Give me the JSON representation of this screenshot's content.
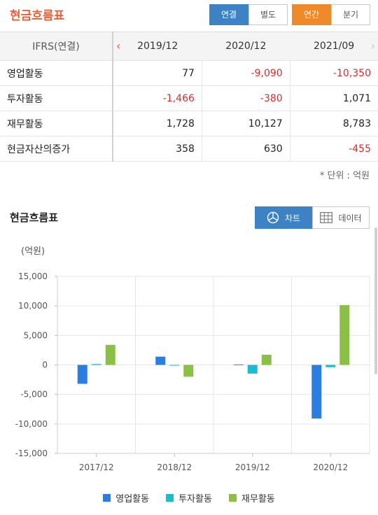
{
  "header": {
    "title": "현금흐름표",
    "consolidation_tabs": [
      "연결",
      "별도"
    ],
    "period_tabs": [
      "연간",
      "분기"
    ]
  },
  "table": {
    "corner_label": "IFRS(연결)",
    "columns": [
      "2019/12",
      "2020/12",
      "2021/09"
    ],
    "rows": [
      {
        "label": "영업활동",
        "values": [
          "77",
          "-9,090",
          "-10,350"
        ]
      },
      {
        "label": "투자활동",
        "values": [
          "-1,466",
          "-380",
          "1,071"
        ]
      },
      {
        "label": "재무활동",
        "values": [
          "1,728",
          "10,127",
          "8,783"
        ]
      },
      {
        "label": "현금자산의증가",
        "values": [
          "358",
          "630",
          "-455"
        ]
      }
    ],
    "unit_note": "* 단위 : 억원"
  },
  "chart_section": {
    "title": "현금흐름표",
    "chart_tab": "차트",
    "data_tab": "데이터",
    "y_unit": "(억원)"
  },
  "colors": {
    "series1": "#2a7de1",
    "series2": "#1bbccf",
    "series3": "#8bbf46",
    "negative": "#d62b2b",
    "accent_blue": "#3d82c4",
    "accent_orange": "#ef8a2b"
  },
  "chart_data": {
    "type": "bar",
    "categories": [
      "2017/12",
      "2018/12",
      "2019/12",
      "2020/12"
    ],
    "series": [
      {
        "name": "영업활동",
        "values": [
          -3200,
          1400,
          77,
          -9090
        ]
      },
      {
        "name": "투자활동",
        "values": [
          150,
          -80,
          -1466,
          -380
        ]
      },
      {
        "name": "재무활동",
        "values": [
          3400,
          -2000,
          1728,
          10127
        ]
      }
    ],
    "ylim": [
      -15000,
      15000
    ],
    "yticks": [
      "15,000",
      "10,000",
      "5,000",
      "0",
      "-5,000",
      "-10,000",
      "-15,000"
    ],
    "ytick_values": [
      15000,
      10000,
      5000,
      0,
      -5000,
      -10000,
      -15000
    ],
    "legend_position": "bottom",
    "grid": true
  }
}
